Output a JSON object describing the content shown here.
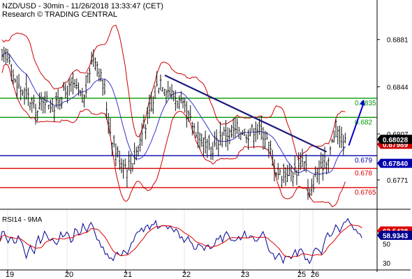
{
  "header": {
    "line1": "NZD/USD - 30min - 11/26/2018 13:33:47 (CET)",
    "line2": "Research © TRADING CENTRAL"
  },
  "chart_data": [
    {
      "type": "candlestick",
      "instrument": "NZD/USD",
      "timeframe": "30min",
      "x_ticks": [
        "19",
        "20",
        "21",
        "22",
        "23",
        "25",
        "26"
      ],
      "ylim": [
        0.6748,
        0.6912
      ],
      "y_ticks": [
        0.6881,
        0.6844,
        0.6807,
        0.6771
      ],
      "last_price": 0.68028,
      "price_tag_2": 0.67989,
      "price_tag_3": 0.6784,
      "price_tag_colors": {
        "last": "#000000",
        "tag2": "#cc0000",
        "tag3": "#0000b0"
      },
      "levels": [
        {
          "value": 0.6835,
          "label": "0.6835",
          "color": "#009900"
        },
        {
          "value": 0.682,
          "label": "0.682",
          "color": "#009900"
        },
        {
          "value": 0.679,
          "label": "0.679",
          "color": "#0000b0"
        },
        {
          "value": 0.678,
          "label": "0.678",
          "color": "#dd0000"
        },
        {
          "value": 0.6765,
          "label": "0.6765",
          "color": "#dd0000"
        }
      ],
      "trendline": [
        [
          0.0,
          0.6853
        ],
        [
          0.44,
          0.6793
        ]
      ],
      "projection_arrow": [
        [
          0.925,
          0.6798
        ],
        [
          0.965,
          0.6834
        ]
      ],
      "price_path": [
        [
          0.0,
          0.6864
        ],
        [
          0.01,
          0.6872
        ],
        [
          0.02,
          0.6868
        ],
        [
          0.025,
          0.686
        ],
        [
          0.035,
          0.6846
        ],
        [
          0.05,
          0.6842
        ],
        [
          0.065,
          0.6838
        ],
        [
          0.08,
          0.683
        ],
        [
          0.095,
          0.6824
        ],
        [
          0.11,
          0.6836
        ],
        [
          0.125,
          0.6832
        ],
        [
          0.14,
          0.6826
        ],
        [
          0.155,
          0.684
        ],
        [
          0.17,
          0.6838
        ],
        [
          0.185,
          0.6845
        ],
        [
          0.2,
          0.684
        ],
        [
          0.215,
          0.6832
        ],
        [
          0.225,
          0.6845
        ],
        [
          0.235,
          0.6862
        ],
        [
          0.245,
          0.687
        ],
        [
          0.255,
          0.686
        ],
        [
          0.265,
          0.6848
        ],
        [
          0.275,
          0.6832
        ],
        [
          0.285,
          0.6812
        ],
        [
          0.3,
          0.6795
        ],
        [
          0.315,
          0.6786
        ],
        [
          0.33,
          0.6782
        ],
        [
          0.345,
          0.6786
        ],
        [
          0.36,
          0.6796
        ],
        [
          0.375,
          0.6812
        ],
        [
          0.39,
          0.6822
        ],
        [
          0.4,
          0.683
        ],
        [
          0.41,
          0.6844
        ],
        [
          0.42,
          0.685
        ],
        [
          0.43,
          0.6846
        ],
        [
          0.445,
          0.684
        ],
        [
          0.46,
          0.6836
        ],
        [
          0.475,
          0.683
        ],
        [
          0.49,
          0.6822
        ],
        [
          0.505,
          0.6814
        ],
        [
          0.52,
          0.6808
        ],
        [
          0.535,
          0.68
        ],
        [
          0.55,
          0.6794
        ],
        [
          0.565,
          0.6798
        ],
        [
          0.58,
          0.6806
        ],
        [
          0.595,
          0.6808
        ],
        [
          0.61,
          0.6806
        ],
        [
          0.625,
          0.6812
        ],
        [
          0.64,
          0.681
        ],
        [
          0.655,
          0.6807
        ],
        [
          0.67,
          0.6812
        ],
        [
          0.685,
          0.681
        ],
        [
          0.7,
          0.6805
        ],
        [
          0.71,
          0.6795
        ],
        [
          0.72,
          0.6784
        ],
        [
          0.73,
          0.6777
        ],
        [
          0.74,
          0.6775
        ],
        [
          0.755,
          0.6778
        ],
        [
          0.77,
          0.6777
        ],
        [
          0.785,
          0.678
        ],
        [
          0.795,
          0.6788
        ],
        [
          0.805,
          0.6787
        ],
        [
          0.81,
          0.6765
        ],
        [
          0.815,
          0.6756
        ],
        [
          0.825,
          0.6768
        ],
        [
          0.835,
          0.6778
        ],
        [
          0.845,
          0.6775
        ],
        [
          0.855,
          0.679
        ],
        [
          0.865,
          0.6786
        ],
        [
          0.875,
          0.68
        ],
        [
          0.885,
          0.6812
        ],
        [
          0.892,
          0.681
        ],
        [
          0.9,
          0.6803
        ],
        [
          0.91,
          0.68
        ]
      ]
    },
    {
      "type": "line",
      "title": "RSI14 - 9MA",
      "series": [
        {
          "name": "RSI14",
          "last_value": 58.9343,
          "color": "#000090"
        },
        {
          "name": "9MA",
          "last_value": 63.5438,
          "color": "#dd0000"
        }
      ],
      "y_ticks": [
        50,
        30
      ],
      "ylim": [
        24,
        82
      ],
      "rsi_path": [
        [
          0.0,
          55
        ],
        [
          0.01,
          66
        ],
        [
          0.02,
          52
        ],
        [
          0.03,
          60
        ],
        [
          0.04,
          45
        ],
        [
          0.05,
          58
        ],
        [
          0.06,
          50
        ],
        [
          0.07,
          37
        ],
        [
          0.08,
          48
        ],
        [
          0.09,
          40
        ],
        [
          0.1,
          57
        ],
        [
          0.11,
          52
        ],
        [
          0.12,
          64
        ],
        [
          0.13,
          50
        ],
        [
          0.14,
          58
        ],
        [
          0.15,
          48
        ],
        [
          0.16,
          62
        ],
        [
          0.17,
          55
        ],
        [
          0.18,
          63
        ],
        [
          0.19,
          52
        ],
        [
          0.2,
          66
        ],
        [
          0.21,
          57
        ],
        [
          0.22,
          70
        ],
        [
          0.23,
          64
        ],
        [
          0.24,
          75
        ],
        [
          0.25,
          62
        ],
        [
          0.26,
          55
        ],
        [
          0.27,
          46
        ],
        [
          0.28,
          40
        ],
        [
          0.29,
          35
        ],
        [
          0.3,
          32
        ],
        [
          0.31,
          40
        ],
        [
          0.32,
          34
        ],
        [
          0.33,
          45
        ],
        [
          0.34,
          38
        ],
        [
          0.35,
          50
        ],
        [
          0.36,
          58
        ],
        [
          0.37,
          66
        ],
        [
          0.38,
          62
        ],
        [
          0.39,
          70
        ],
        [
          0.4,
          66
        ],
        [
          0.41,
          74
        ],
        [
          0.42,
          68
        ],
        [
          0.43,
          72
        ],
        [
          0.44,
          66
        ],
        [
          0.45,
          68
        ],
        [
          0.46,
          60
        ],
        [
          0.47,
          64
        ],
        [
          0.48,
          56
        ],
        [
          0.49,
          52
        ],
        [
          0.5,
          56
        ],
        [
          0.51,
          48
        ],
        [
          0.52,
          44
        ],
        [
          0.53,
          50
        ],
        [
          0.54,
          42
        ],
        [
          0.55,
          48
        ],
        [
          0.56,
          40
        ],
        [
          0.57,
          52
        ],
        [
          0.58,
          58
        ],
        [
          0.59,
          54
        ],
        [
          0.6,
          62
        ],
        [
          0.61,
          56
        ],
        [
          0.62,
          50
        ],
        [
          0.63,
          58
        ],
        [
          0.64,
          52
        ],
        [
          0.65,
          62
        ],
        [
          0.66,
          55
        ],
        [
          0.67,
          60
        ],
        [
          0.68,
          52
        ],
        [
          0.69,
          58
        ],
        [
          0.7,
          62
        ],
        [
          0.71,
          48
        ],
        [
          0.72,
          40
        ],
        [
          0.73,
          33
        ],
        [
          0.74,
          38
        ],
        [
          0.75,
          32
        ],
        [
          0.76,
          40
        ],
        [
          0.77,
          35
        ],
        [
          0.78,
          44
        ],
        [
          0.79,
          38
        ],
        [
          0.8,
          48
        ],
        [
          0.81,
          35
        ],
        [
          0.82,
          28
        ],
        [
          0.83,
          40
        ],
        [
          0.84,
          46
        ],
        [
          0.85,
          38
        ],
        [
          0.86,
          52
        ],
        [
          0.87,
          60
        ],
        [
          0.88,
          56
        ],
        [
          0.89,
          68
        ],
        [
          0.9,
          64
        ],
        [
          0.91,
          72
        ],
        [
          0.92,
          76
        ],
        [
          0.93,
          70
        ],
        [
          0.94,
          66
        ],
        [
          0.95,
          60
        ],
        [
          0.96,
          58.9
        ]
      ]
    }
  ]
}
